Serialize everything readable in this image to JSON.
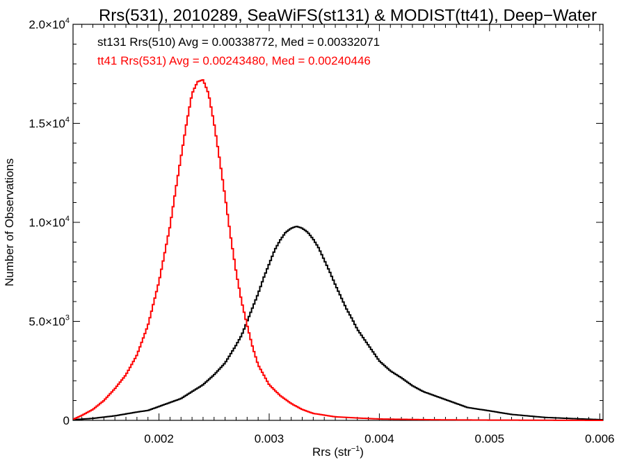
{
  "chart_data": {
    "type": "line",
    "title": "Rrs(531), 2010289, SeaWiFS(st131) & MODIST(tt41), Deep−Water",
    "xlabel_main": "Rrs (str",
    "xlabel_sup": "−1",
    "xlabel_end": ")",
    "ylabel": "Number of Observations",
    "xlim": [
      0.00122,
      0.00603
    ],
    "ylim": [
      0,
      20000
    ],
    "xticks": [
      {
        "value": 0.002,
        "label": "0.002"
      },
      {
        "value": 0.003,
        "label": "0.003"
      },
      {
        "value": 0.004,
        "label": "0.004"
      },
      {
        "value": 0.005,
        "label": "0.005"
      },
      {
        "value": 0.006,
        "label": "0.006"
      }
    ],
    "yticks": [
      {
        "value": 0,
        "mant": "0",
        "exp": ""
      },
      {
        "value": 5000,
        "mant": "5.0×10",
        "exp": "3"
      },
      {
        "value": 10000,
        "mant": "1.0×10",
        "exp": "4"
      },
      {
        "value": 15000,
        "mant": "1.5×10",
        "exp": "4"
      },
      {
        "value": 20000,
        "mant": "2.0×10",
        "exp": "4"
      }
    ],
    "annotations": [
      {
        "text": "st131 Rrs(510) Avg = 0.00338772, Med = 0.00332071",
        "color": "#000000"
      },
      {
        "text": "tt41 Rrs(531) Avg = 0.00243480, Med = 0.00240446",
        "color": "#ff0000"
      }
    ],
    "series": [
      {
        "color": "#000000",
        "x": [
          0.00122,
          0.0014,
          0.0016,
          0.0018,
          0.0019,
          0.002,
          0.0021,
          0.0022,
          0.0023,
          0.0024,
          0.0025,
          0.0026,
          0.0027,
          0.00275,
          0.0028,
          0.00285,
          0.0029,
          0.00295,
          0.003,
          0.00305,
          0.0031,
          0.00315,
          0.0032,
          0.00325,
          0.0033,
          0.00335,
          0.0034,
          0.00345,
          0.0035,
          0.00355,
          0.0036,
          0.00365,
          0.0037,
          0.00375,
          0.0038,
          0.0039,
          0.004,
          0.0041,
          0.0042,
          0.0043,
          0.0044,
          0.0045,
          0.0046,
          0.0048,
          0.005,
          0.0052,
          0.0055,
          0.0058,
          0.00603
        ],
        "y": [
          30,
          100,
          230,
          420,
          500,
          700,
          900,
          1100,
          1450,
          1800,
          2300,
          2900,
          3800,
          4300,
          5000,
          5700,
          6400,
          7200,
          7900,
          8600,
          9100,
          9500,
          9700,
          9800,
          9700,
          9500,
          9150,
          8700,
          8100,
          7500,
          6850,
          6250,
          5650,
          5150,
          4600,
          3800,
          3000,
          2500,
          2150,
          1750,
          1450,
          1250,
          1050,
          650,
          480,
          300,
          150,
          80,
          30
        ]
      },
      {
        "color": "#ff0000",
        "x": [
          0.00122,
          0.0013,
          0.0014,
          0.0015,
          0.0016,
          0.0017,
          0.0018,
          0.0019,
          0.002,
          0.0021,
          0.00215,
          0.0022,
          0.00225,
          0.0023,
          0.00235,
          0.0024,
          0.00245,
          0.0025,
          0.00255,
          0.0026,
          0.00265,
          0.0027,
          0.00275,
          0.0028,
          0.00285,
          0.0029,
          0.003,
          0.0031,
          0.0032,
          0.0033,
          0.0034,
          0.0036,
          0.0038,
          0.004,
          0.0045,
          0.005,
          0.00603
        ],
        "y": [
          50,
          250,
          550,
          1000,
          1600,
          2300,
          3300,
          4800,
          7000,
          9800,
          11600,
          13300,
          15000,
          16500,
          17100,
          17200,
          16500,
          15000,
          13200,
          11300,
          9300,
          7500,
          6000,
          4800,
          3700,
          2800,
          1800,
          1250,
          850,
          550,
          350,
          180,
          120,
          70,
          30,
          15,
          0
        ]
      }
    ]
  }
}
